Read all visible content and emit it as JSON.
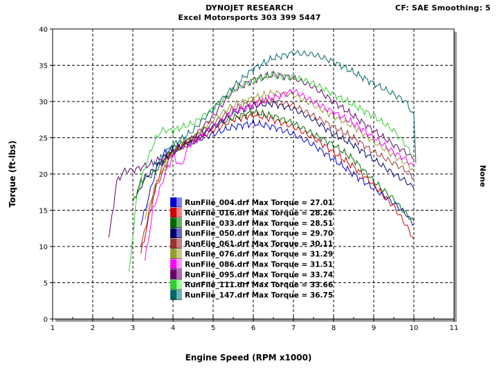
{
  "header": {
    "title": "DYNOJET RESEARCH",
    "subtitle": "Excel Motorsports 303 399 5447",
    "settings": "CF: SAE  Smoothing: 5"
  },
  "chart_data": {
    "type": "line",
    "xlabel": "Engine Speed (RPM x1000)",
    "ylabel": "Torque (ft-lbs)",
    "right_axis_label": "None",
    "xlim": [
      1,
      11
    ],
    "ylim": [
      0,
      40
    ],
    "x_ticks": [
      "1",
      "2",
      "3",
      "4",
      "5",
      "6",
      "7",
      "8",
      "9",
      "10",
      "11"
    ],
    "y_ticks": [
      "0",
      "5",
      "10",
      "15",
      "20",
      "25",
      "30",
      "35",
      "40"
    ],
    "grid": true,
    "legend_position": "center-left",
    "series": [
      {
        "name": "RunFile_004.drf Max Torque = 27.01",
        "color": "#0000cc",
        "swatch_light": "#8080ff",
        "points": [
          [
            3.2,
            13
          ],
          [
            3.4,
            17
          ],
          [
            3.6,
            21
          ],
          [
            3.8,
            23
          ],
          [
            4.0,
            23.5
          ],
          [
            4.5,
            24.5
          ],
          [
            5.0,
            25.5
          ],
          [
            5.5,
            26.5
          ],
          [
            6.0,
            27.0
          ],
          [
            6.5,
            26.5
          ],
          [
            7.0,
            25.5
          ],
          [
            7.5,
            24
          ],
          [
            8.0,
            22
          ],
          [
            8.5,
            20
          ],
          [
            9.0,
            18
          ],
          [
            9.5,
            16
          ],
          [
            9.8,
            14.5
          ],
          [
            10.0,
            13
          ]
        ]
      },
      {
        "name": "RunFile_016.drf Max Torque = 28.26",
        "color": "#cc0000",
        "swatch_light": "#ff8080",
        "points": [
          [
            3.2,
            9
          ],
          [
            3.4,
            14
          ],
          [
            3.6,
            19
          ],
          [
            3.8,
            22
          ],
          [
            4.0,
            23
          ],
          [
            4.5,
            24.5
          ],
          [
            5.0,
            26
          ],
          [
            5.5,
            27.5
          ],
          [
            6.0,
            28.2
          ],
          [
            6.5,
            27.5
          ],
          [
            7.0,
            26.5
          ],
          [
            7.5,
            25
          ],
          [
            8.0,
            23
          ],
          [
            8.5,
            21
          ],
          [
            9.0,
            18.5
          ],
          [
            9.5,
            15.5
          ],
          [
            9.8,
            13
          ],
          [
            10.0,
            11
          ]
        ]
      },
      {
        "name": "RunFile_033.drf Max Torque = 28.51",
        "color": "#006600",
        "swatch_light": "#66b366",
        "points": [
          [
            3.0,
            16
          ],
          [
            3.2,
            19
          ],
          [
            3.5,
            20
          ],
          [
            3.8,
            22
          ],
          [
            4.0,
            23.5
          ],
          [
            4.5,
            25
          ],
          [
            5.0,
            26.5
          ],
          [
            5.5,
            27.8
          ],
          [
            6.0,
            28.5
          ],
          [
            6.5,
            28
          ],
          [
            7.0,
            27
          ],
          [
            7.5,
            25.5
          ],
          [
            8.0,
            24
          ],
          [
            8.5,
            22
          ],
          [
            9.0,
            19
          ],
          [
            9.5,
            16.5
          ],
          [
            9.8,
            14.5
          ],
          [
            10.0,
            13.5
          ]
        ]
      },
      {
        "name": "RunFile_050.drf Max Torque = 29.70",
        "color": "#000066",
        "swatch_light": "#6666cc",
        "points": [
          [
            3.1,
            17
          ],
          [
            3.3,
            19.5
          ],
          [
            3.6,
            21
          ],
          [
            4.0,
            23
          ],
          [
            4.5,
            24.5
          ],
          [
            5.0,
            26.5
          ],
          [
            5.5,
            28.5
          ],
          [
            6.0,
            29.5
          ],
          [
            6.5,
            29.7
          ],
          [
            7.0,
            29
          ],
          [
            7.5,
            27.5
          ],
          [
            8.0,
            25.5
          ],
          [
            8.5,
            24
          ],
          [
            9.0,
            22
          ],
          [
            9.5,
            20
          ],
          [
            9.8,
            19
          ],
          [
            10.0,
            18
          ]
        ]
      },
      {
        "name": "RunFile_061.drf Max Torque = 30.11",
        "color": "#993333",
        "swatch_light": "#cc8080",
        "points": [
          [
            3.2,
            10
          ],
          [
            3.5,
            17
          ],
          [
            3.8,
            21
          ],
          [
            4.0,
            23
          ],
          [
            4.5,
            25
          ],
          [
            5.0,
            27
          ],
          [
            5.5,
            29
          ],
          [
            6.0,
            30
          ],
          [
            6.5,
            30.1
          ],
          [
            7.0,
            29.5
          ],
          [
            7.5,
            28
          ],
          [
            8.0,
            26.5
          ],
          [
            8.5,
            25
          ],
          [
            9.0,
            23
          ],
          [
            9.5,
            21.5
          ],
          [
            9.8,
            20.5
          ],
          [
            10.0,
            19.5
          ]
        ]
      },
      {
        "name": "RunFile_076.drf Max Torque = 31.29",
        "color": "#999933",
        "swatch_light": "#cccc80",
        "points": [
          [
            3.3,
            14
          ],
          [
            3.6,
            19
          ],
          [
            4.0,
            23
          ],
          [
            4.5,
            25
          ],
          [
            5.0,
            27.5
          ],
          [
            5.5,
            29.5
          ],
          [
            6.0,
            30.5
          ],
          [
            6.5,
            31.2
          ],
          [
            7.0,
            31
          ],
          [
            7.5,
            29.5
          ],
          [
            8.0,
            28
          ],
          [
            8.5,
            26.5
          ],
          [
            9.0,
            24.5
          ],
          [
            9.5,
            22.5
          ],
          [
            9.8,
            21.5
          ],
          [
            10.0,
            20.5
          ]
        ]
      },
      {
        "name": "RunFile_086.drf Max Torque = 31.51",
        "color": "#ff00ff",
        "swatch_light": "#ff99ff",
        "points": [
          [
            3.3,
            8
          ],
          [
            3.5,
            15
          ],
          [
            3.8,
            20
          ],
          [
            4.0,
            22.5
          ],
          [
            4.2,
            21
          ],
          [
            4.4,
            24
          ],
          [
            5.0,
            26.5
          ],
          [
            5.5,
            28.5
          ],
          [
            6.0,
            29.5
          ],
          [
            6.5,
            30.5
          ],
          [
            7.0,
            31.5
          ],
          [
            7.5,
            30
          ],
          [
            8.0,
            28.5
          ],
          [
            8.5,
            27
          ],
          [
            9.0,
            25
          ],
          [
            9.5,
            23
          ],
          [
            9.8,
            22
          ],
          [
            10.0,
            21
          ]
        ]
      },
      {
        "name": "RunFile_095.drf Max Torque = 33.74",
        "color": "#660066",
        "swatch_light": "#b366b3",
        "points": [
          [
            2.4,
            11
          ],
          [
            2.6,
            19
          ],
          [
            2.8,
            20.5
          ],
          [
            3.0,
            20.5
          ],
          [
            3.5,
            21.5
          ],
          [
            4.0,
            23
          ],
          [
            4.5,
            25
          ],
          [
            5.0,
            28
          ],
          [
            5.5,
            31.5
          ],
          [
            6.0,
            33
          ],
          [
            6.5,
            33.7
          ],
          [
            7.0,
            33.3
          ],
          [
            7.5,
            32
          ],
          [
            8.0,
            30
          ],
          [
            8.5,
            28
          ],
          [
            9.0,
            26
          ],
          [
            9.5,
            24
          ],
          [
            9.8,
            23
          ],
          [
            10.0,
            22
          ]
        ]
      },
      {
        "name": "RunFile_111.drf Max Torque = 33.66",
        "color": "#33cc33",
        "swatch_light": "#99ff99",
        "points": [
          [
            2.9,
            6
          ],
          [
            3.1,
            17
          ],
          [
            3.3,
            21
          ],
          [
            3.5,
            24
          ],
          [
            3.7,
            26
          ],
          [
            4.0,
            26
          ],
          [
            4.5,
            27
          ],
          [
            5.0,
            29
          ],
          [
            5.5,
            31.5
          ],
          [
            6.0,
            33
          ],
          [
            6.5,
            33.6
          ],
          [
            7.0,
            33.4
          ],
          [
            7.5,
            32.5
          ],
          [
            8.0,
            31
          ],
          [
            8.5,
            29.5
          ],
          [
            9.0,
            28
          ],
          [
            9.5,
            26
          ],
          [
            9.8,
            24
          ],
          [
            9.95,
            22.5
          ]
        ]
      },
      {
        "name": "RunFile_147.drf Max Torque = 36.75",
        "color": "#006666",
        "swatch_light": "#66b3b3",
        "points": [
          [
            3.5,
            21
          ],
          [
            4.0,
            24
          ],
          [
            4.5,
            26
          ],
          [
            5.0,
            29
          ],
          [
            5.5,
            32
          ],
          [
            6.0,
            34.5
          ],
          [
            6.5,
            36
          ],
          [
            7.0,
            36.7
          ],
          [
            7.5,
            36.5
          ],
          [
            8.0,
            35.5
          ],
          [
            8.5,
            34
          ],
          [
            9.0,
            32.5
          ],
          [
            9.5,
            31
          ],
          [
            9.8,
            30
          ],
          [
            10.0,
            28
          ],
          [
            10.05,
            21.5
          ]
        ]
      }
    ]
  }
}
